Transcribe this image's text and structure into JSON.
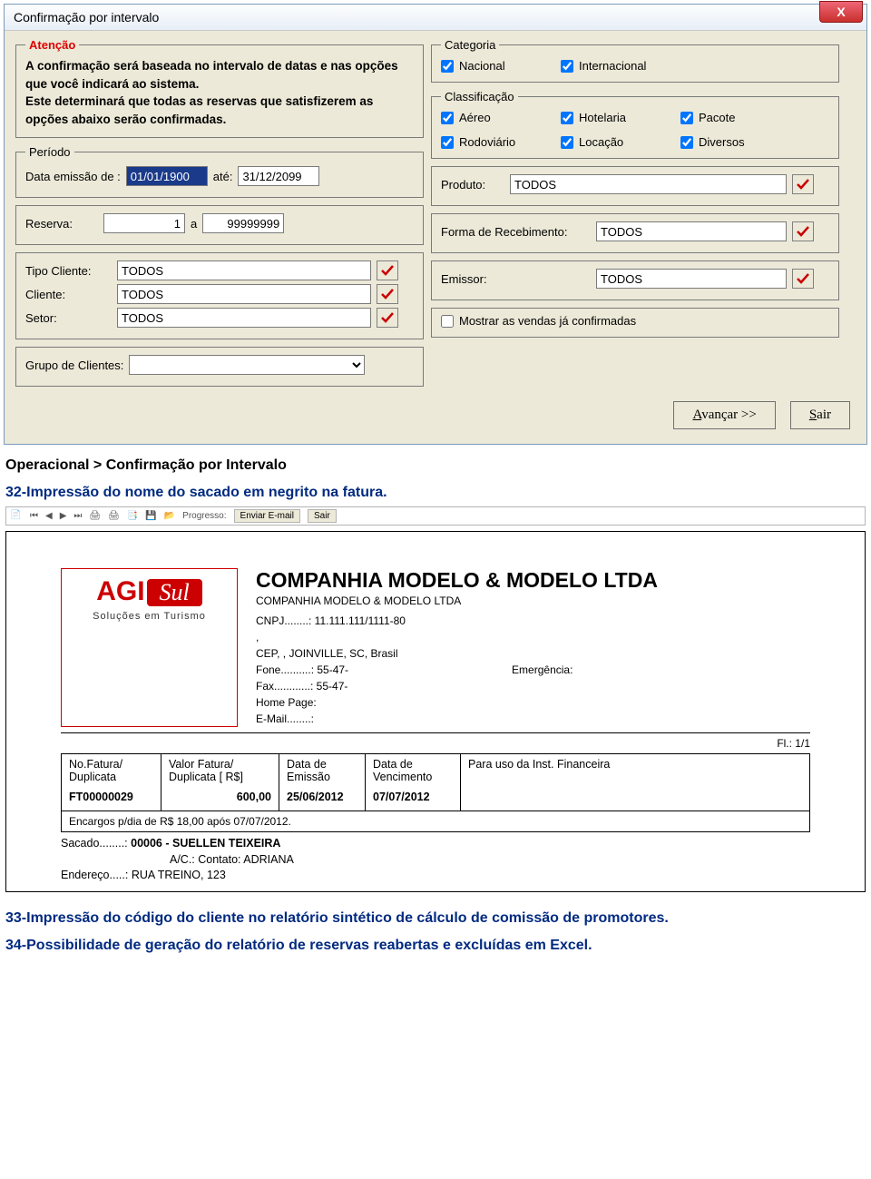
{
  "dialog": {
    "title": "Confirmação por intervalo",
    "atencao_legend": "Atenção",
    "atencao_text": "A confirmação será baseada no intervalo de datas e nas opções que você indicará ao sistema.\nEste determinará que todas as reservas que satisfizerem as opções abaixo serão confirmadas.",
    "periodo": {
      "legend": "Período",
      "label": "Data emissão de :",
      "de": "01/01/1900",
      "ate_label": "até:",
      "ate": "31/12/2099"
    },
    "reserva": {
      "label": "Reserva:",
      "de": "1",
      "sep": "a",
      "ate": "99999999"
    },
    "tipo_cliente": {
      "label": "Tipo Cliente:",
      "value": "TODOS"
    },
    "cliente": {
      "label": "Cliente:",
      "value": "TODOS"
    },
    "setor": {
      "label": "Setor:",
      "value": "TODOS"
    },
    "grupo": {
      "label": "Grupo de Clientes:"
    },
    "categoria": {
      "legend": "Categoria",
      "nacional": "Nacional",
      "internacional": "Internacional"
    },
    "classif": {
      "legend": "Classificação",
      "aereo": "Aéreo",
      "hotelaria": "Hotelaria",
      "pacote": "Pacote",
      "rodoviario": "Rodoviário",
      "locacao": "Locação",
      "diversos": "Diversos"
    },
    "produto": {
      "label": "Produto:",
      "value": "TODOS"
    },
    "forma": {
      "label": "Forma de Recebimento:",
      "value": "TODOS"
    },
    "emissor": {
      "label": "Emissor:",
      "value": "TODOS"
    },
    "mostrar": "Mostrar as vendas já confirmadas",
    "avancar": "Avançar >>",
    "sair": "Sair"
  },
  "doc": {
    "breadcrumb": "Operacional > Confirmação por Intervalo",
    "item32": "32-Impressão do nome do sacado em negrito na fatura.",
    "item33": "33-Impressão do código do cliente no relatório sintético de cálculo de comissão de promotores.",
    "item34": "34-Possibilidade de geração do relatório de reservas reabertas e excluídas em Excel."
  },
  "toolbar": {
    "progresso": "Progresso:",
    "enviar": "Enviar E-mail",
    "sair": "Sair"
  },
  "invoice": {
    "logo_brand": "AGI",
    "logo_sub": "Sul",
    "logo_tag": "Soluções em Turismo",
    "company_big": "COMPANHIA MODELO & MODELO LTDA",
    "company_small": "COMPANHIA MODELO & MODELO LTDA",
    "cnpj": "CNPJ........: 11.111.111/1111-80",
    "dot": ",",
    "cep": "CEP, , JOINVILLE, SC, Brasil",
    "fone": "Fone..........: 55-47-",
    "emerg": "Emergência:",
    "fax": "Fax............: 55-47-",
    "homepage": "Home Page:",
    "email": "E-Mail........:",
    "fl": "Fl.: 1/1",
    "h_nofatura": "No.Fatura/\nDuplicata",
    "h_valor": "Valor Fatura/\nDuplicata    [ R$]",
    "h_emissao": "Data de\nEmissão",
    "h_venc": "Data de\nVencimento",
    "h_inst": "Para uso da Inst. Financeira",
    "v_nofatura": "FT00000029",
    "v_valor": "600,00",
    "v_emissao": "25/06/2012",
    "v_venc": "07/07/2012",
    "encargos": "Encargos p/dia de R$ 18,00 após 07/07/2012.",
    "sacado_l1a": "Sacado........: ",
    "sacado_l1b": "00006 - SUELLEN TEIXEIRA",
    "sacado_l2": "A/C.: Contato: ADRIANA",
    "sacado_l3": "Endereço.....: RUA TREINO, 123"
  }
}
